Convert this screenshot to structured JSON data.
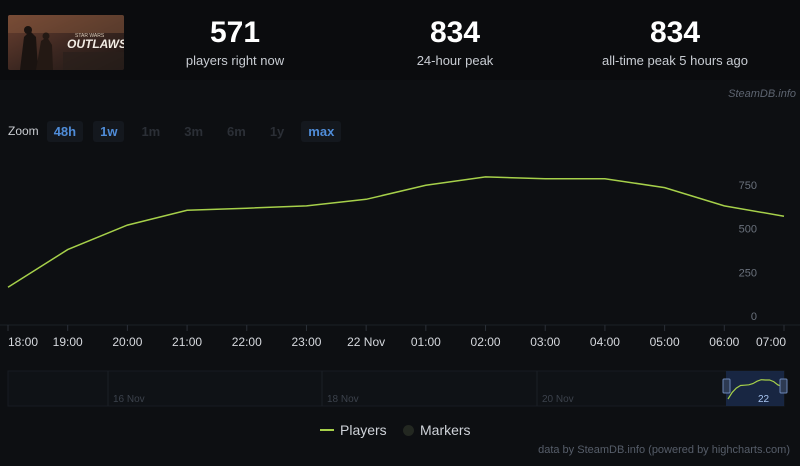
{
  "header": {
    "game_logo_text": "OUTLAWS",
    "game_logo_subtext": "STAR WARS",
    "stats": [
      {
        "value": "571",
        "label": "players right now"
      },
      {
        "value": "834",
        "label": "24-hour peak"
      },
      {
        "value": "834",
        "label": "all-time peak 5 hours ago"
      }
    ]
  },
  "attribution_top": "SteamDB.info",
  "zoom": {
    "label": "Zoom",
    "options": [
      {
        "label": "48h",
        "enabled": true
      },
      {
        "label": "1w",
        "enabled": true
      },
      {
        "label": "1m",
        "enabled": false
      },
      {
        "label": "3m",
        "enabled": false
      },
      {
        "label": "6m",
        "enabled": false
      },
      {
        "label": "1y",
        "enabled": false
      },
      {
        "label": "max",
        "enabled": true
      }
    ]
  },
  "chart_data": {
    "type": "line",
    "series": [
      {
        "name": "Players",
        "color": "#a6d04a",
        "x": [
          "18:00",
          "19:00",
          "20:00",
          "21:00",
          "22:00",
          "23:00",
          "22 Nov",
          "01:00",
          "02:00",
          "03:00",
          "04:00",
          "05:00",
          "06:00",
          "07:00"
        ],
        "values": [
          165,
          380,
          520,
          605,
          617,
          630,
          668,
          748,
          796,
          785,
          786,
          735,
          630,
          571
        ]
      }
    ],
    "x_tick_labels": [
      "18:00",
      "19:00",
      "20:00",
      "21:00",
      "22:00",
      "23:00",
      "22 Nov",
      "01:00",
      "02:00",
      "03:00",
      "04:00",
      "05:00",
      "06:00",
      "07:00"
    ],
    "y_ticks": [
      0,
      250,
      500,
      750
    ],
    "ylim": [
      0,
      950
    ],
    "grid": false,
    "navigator": {
      "labels": [
        "16 Nov",
        "18 Nov",
        "20 Nov",
        "22"
      ]
    },
    "legend": [
      {
        "name": "Players",
        "type": "line",
        "color": "#a6d04a"
      },
      {
        "name": "Markers",
        "type": "dot",
        "color": "#232821"
      }
    ]
  },
  "credits": "data by SteamDB.info (powered by highcharts.com)"
}
